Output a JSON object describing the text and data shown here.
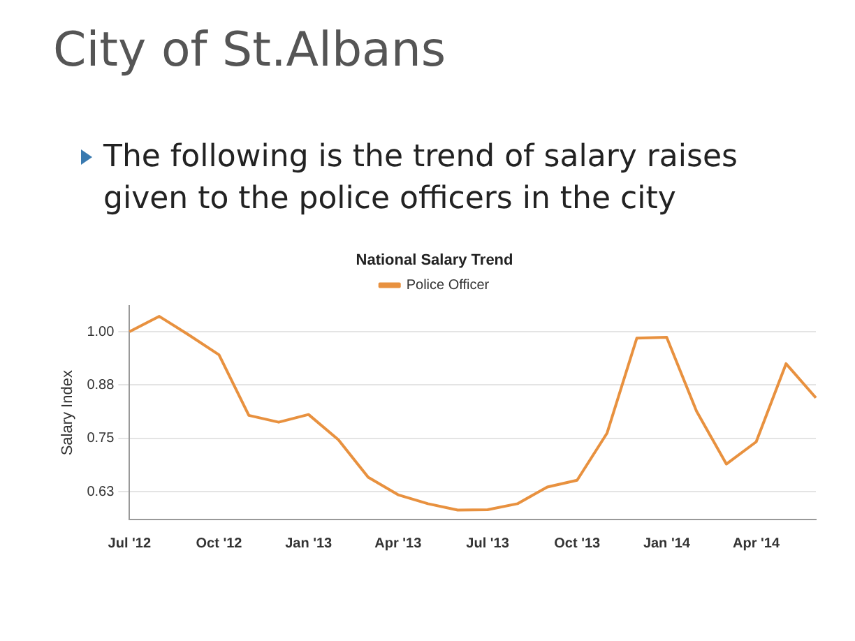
{
  "chart_data": {
    "type": "line",
    "title": "City of St.Albans",
    "subtitle": "The following is the trend of salary raises given to the police officers in the city",
    "annotations": [
      "National Salary Trend"
    ],
    "ylabel": "Salary Index",
    "categories": [
      "Jul '12",
      null,
      null,
      "Oct '12",
      null,
      null,
      "Jan '13",
      null,
      null,
      "Apr '13",
      null,
      null,
      "Jul '13",
      null,
      null,
      "Oct '13",
      null,
      null,
      "Jan '14",
      null,
      null,
      "Apr '14",
      null,
      null
    ],
    "series": [
      {
        "name": "Police Officer",
        "color": "#e8913f",
        "values": [
          1.0,
          1.036,
          0.992,
          0.946,
          0.804,
          0.788,
          0.806,
          0.747,
          0.659,
          0.618,
          0.597,
          0.582,
          0.583,
          0.597,
          0.636,
          0.652,
          0.762,
          0.985,
          0.987,
          0.814,
          0.69,
          0.742,
          0.925,
          0.845
        ]
      }
    ],
    "ylim": [
      0.56,
      1.06
    ],
    "yticks": [
      {
        "value": 0.625,
        "label": "0.63"
      },
      {
        "value": 0.75,
        "label": "0.75"
      },
      {
        "value": 0.875,
        "label": "0.88"
      },
      {
        "value": 1.0,
        "label": "1.00"
      }
    ],
    "grid": "y",
    "legend": "top",
    "marker": "none",
    "line_style": "solid"
  }
}
